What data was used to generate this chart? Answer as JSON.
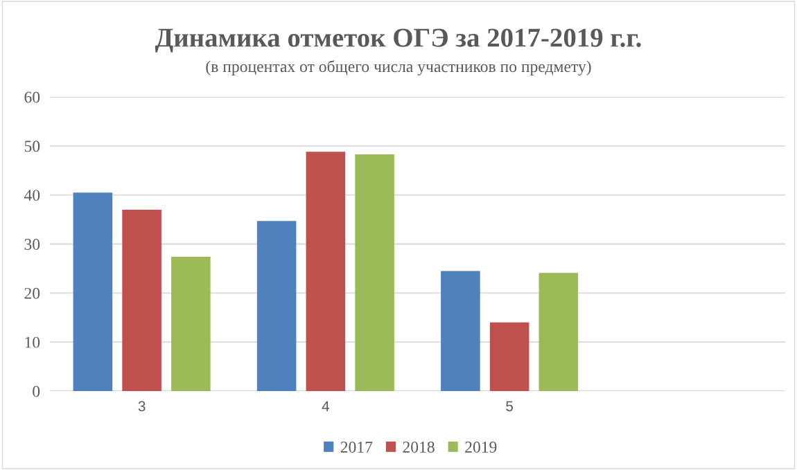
{
  "chart_data": {
    "type": "bar",
    "title": "Динамика отметок ОГЭ за 2017-2019 г.г.",
    "subtitle": "(в процентах от общего числа участников по предмету)",
    "categories": [
      "3",
      "4",
      "5",
      null
    ],
    "series": [
      {
        "name": "2017",
        "color": "#4f81bd",
        "values": [
          40.5,
          34.7,
          24.5,
          null
        ]
      },
      {
        "name": "2018",
        "color": "#c0504d",
        "values": [
          37.0,
          48.8,
          14.0,
          null
        ]
      },
      {
        "name": "2019",
        "color": "#9bbb59",
        "values": [
          27.4,
          48.3,
          24.1,
          null
        ]
      }
    ],
    "ylim": [
      0,
      60
    ],
    "yticks": [
      0,
      10,
      20,
      30,
      40,
      50,
      60
    ],
    "grid": "y",
    "legend": "bottom"
  }
}
